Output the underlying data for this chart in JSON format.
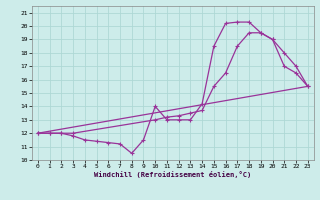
{
  "xlabel": "Windchill (Refroidissement éolien,°C)",
  "bg_color": "#cdecea",
  "grid_color": "#aed8d5",
  "line_color": "#993399",
  "xlim": [
    -0.5,
    23.5
  ],
  "ylim": [
    10,
    21.5
  ],
  "yticks": [
    10,
    11,
    12,
    13,
    14,
    15,
    16,
    17,
    18,
    19,
    20,
    21
  ],
  "xticks": [
    0,
    1,
    2,
    3,
    4,
    5,
    6,
    7,
    8,
    9,
    10,
    11,
    12,
    13,
    14,
    15,
    16,
    17,
    18,
    19,
    20,
    21,
    22,
    23
  ],
  "line1_x": [
    0,
    1,
    2,
    3,
    4,
    5,
    6,
    7,
    8,
    9,
    10,
    11,
    12,
    13,
    14,
    15,
    16,
    17,
    18,
    19,
    20,
    21,
    22,
    23
  ],
  "line1_y": [
    12,
    12,
    12,
    11.8,
    11.5,
    11.4,
    11.3,
    11.2,
    10.5,
    11.5,
    14.0,
    13.0,
    13.0,
    13.0,
    14.2,
    18.5,
    20.2,
    20.3,
    20.3,
    19.5,
    19.0,
    17.0,
    16.5,
    15.5
  ],
  "line2_x": [
    0,
    1,
    2,
    3,
    10,
    11,
    12,
    13,
    14,
    15,
    16,
    17,
    18,
    19,
    20,
    21,
    22,
    23
  ],
  "line2_y": [
    12,
    12,
    12,
    12,
    13.0,
    13.2,
    13.3,
    13.5,
    13.7,
    15.5,
    16.5,
    18.5,
    19.5,
    19.5,
    19.0,
    18.0,
    17.0,
    15.5
  ],
  "line3_x": [
    0,
    23
  ],
  "line3_y": [
    12,
    15.5
  ]
}
